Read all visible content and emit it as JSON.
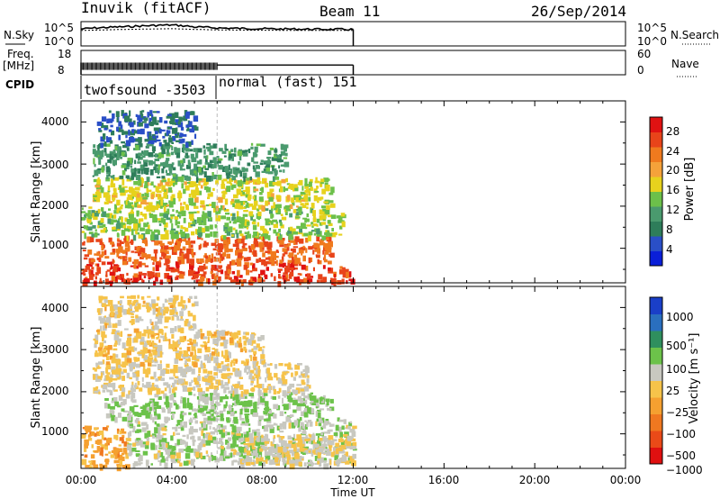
{
  "header": {
    "title": "Inuvik (fitACF)",
    "beam": "Beam 11",
    "date": "26/Sep/2014"
  },
  "noise_panel": {
    "left_label": "N.Sky",
    "left_ticks": [
      "10^5",
      "10^0"
    ],
    "right_ticks": [
      "10^5",
      "10^0"
    ],
    "right_label": "N.Search"
  },
  "freq_panel": {
    "left_label_1": "Freq.",
    "left_label_2": "[MHz]",
    "left_ticks": [
      "18",
      "8"
    ],
    "right_ticks": [
      "60",
      "0"
    ],
    "right_label": "Nave"
  },
  "cpid_panel": {
    "label": "CPID",
    "segments": [
      "twofsound -3503",
      "normal (fast) 151"
    ]
  },
  "x_axis": {
    "label": "Time UT",
    "ticks": [
      "00:00",
      "04:00",
      "08:00",
      "12:00",
      "16:00",
      "20:00",
      "00:00"
    ]
  },
  "power_panel": {
    "ylabel": "Slant Range [km]",
    "yticks": [
      "4000",
      "3000",
      "2000",
      "1000"
    ],
    "colorbar_label": "Power [dB]",
    "colorbar_ticks": [
      "28",
      "24",
      "20",
      "16",
      "12",
      "8",
      "4"
    ]
  },
  "velocity_panel": {
    "ylabel": "Slant Range [km]",
    "yticks": [
      "4000",
      "3000",
      "2000",
      "1000"
    ],
    "colorbar_label": "Velocity [m s⁻¹]",
    "colorbar_ticks": [
      "1000",
      "500",
      "100",
      "25",
      "−25",
      "−100",
      "−500",
      "−1000"
    ]
  },
  "chart_data": [
    {
      "type": "line",
      "title": "N.Sky / N.Search",
      "x_range_hours": [
        0,
        24
      ],
      "y_scale": "log",
      "ylim": [
        1,
        100000
      ],
      "data_extent_hours": [
        0,
        12
      ],
      "x": [
        0,
        1,
        2,
        3,
        4,
        5,
        6,
        7,
        8,
        9,
        10,
        11,
        12
      ],
      "series": [
        {
          "name": "N.Sky",
          "values": [
            3000,
            6000,
            9000,
            15000,
            20000,
            8000,
            5000,
            4000,
            3500,
            3000,
            2800,
            2600,
            2500
          ]
        },
        {
          "name": "N.Search",
          "values": [
            1500,
            2000,
            2500,
            3000,
            3500,
            2500,
            2000,
            1800,
            1700,
            1600,
            1500,
            1500,
            1500
          ]
        }
      ]
    },
    {
      "type": "line",
      "title": "Freq. / Nave",
      "x_range_hours": [
        0,
        24
      ],
      "ylim": [
        8,
        18
      ],
      "y2lim": [
        0,
        60
      ],
      "data_extent_hours": [
        0,
        12
      ],
      "segments": [
        {
          "start": 0,
          "end": 6,
          "freq_range_mhz": [
            10,
            13
          ],
          "mode": "twofsound"
        },
        {
          "start": 6,
          "end": 12,
          "freq_range_mhz": [
            12,
            12
          ],
          "mode": "normal (fast)"
        }
      ]
    },
    {
      "type": "heatmap",
      "title": "Power [dB]",
      "x_range_hours": [
        0,
        24
      ],
      "ylim": [
        180,
        4500
      ],
      "zlim": [
        0,
        30
      ],
      "data_extent_hours": [
        0,
        12
      ],
      "colorscale": [
        "#0a1fd8",
        "#2a4fc7",
        "#2e7d5a",
        "#4a9a6e",
        "#6cc04a",
        "#e7d21d",
        "#f5a23a",
        "#f07a1e",
        "#e8441a",
        "#e01212"
      ],
      "regions": [
        {
          "t0": 0,
          "t1": 12,
          "r0": 200,
          "r1": 700,
          "db": 26
        },
        {
          "t0": 0,
          "t1": 11,
          "r0": 700,
          "r1": 1300,
          "db": 24
        },
        {
          "t0": 0,
          "t1": 11.5,
          "r0": 1300,
          "r1": 2000,
          "db": 14
        },
        {
          "t0": 0.5,
          "t1": 11,
          "r0": 2000,
          "r1": 2700,
          "db": 16
        },
        {
          "t0": 0.5,
          "t1": 9,
          "r0": 2700,
          "r1": 3500,
          "db": 10
        },
        {
          "t0": 0.7,
          "t1": 5,
          "r0": 3500,
          "r1": 4300,
          "db": 6
        }
      ]
    },
    {
      "type": "heatmap",
      "title": "Velocity [m s⁻¹]",
      "x_range_hours": [
        0,
        24
      ],
      "ylim": [
        180,
        4500
      ],
      "zlim": [
        -1000,
        1000
      ],
      "data_extent_hours": [
        0,
        12
      ],
      "colorscale": [
        "#e01010",
        "#ea4a18",
        "#f07820",
        "#f5a030",
        "#f6c34a",
        "#c8c8c0",
        "#6cc24a",
        "#2f8f5e",
        "#2a6fbf",
        "#1a3fc8"
      ],
      "regions": [
        {
          "t0": 0,
          "t1": 2,
          "r0": 200,
          "r1": 1200,
          "v": -200
        },
        {
          "t0": 2,
          "t1": 12,
          "r0": 300,
          "r1": 1400,
          "v": 100
        },
        {
          "t0": 7,
          "t1": 12,
          "r0": 300,
          "r1": 1000,
          "v": 0
        },
        {
          "t0": 1,
          "t1": 11,
          "r0": 1400,
          "r1": 2000,
          "v": 150
        },
        {
          "t0": 0.5,
          "t1": 10,
          "r0": 2000,
          "r1": 2700,
          "v": 0
        },
        {
          "t0": 0.5,
          "t1": 8,
          "r0": 2700,
          "r1": 3500,
          "v": -50
        },
        {
          "t0": 0.7,
          "t1": 5,
          "r0": 3500,
          "r1": 4300,
          "v": -30
        }
      ]
    }
  ]
}
